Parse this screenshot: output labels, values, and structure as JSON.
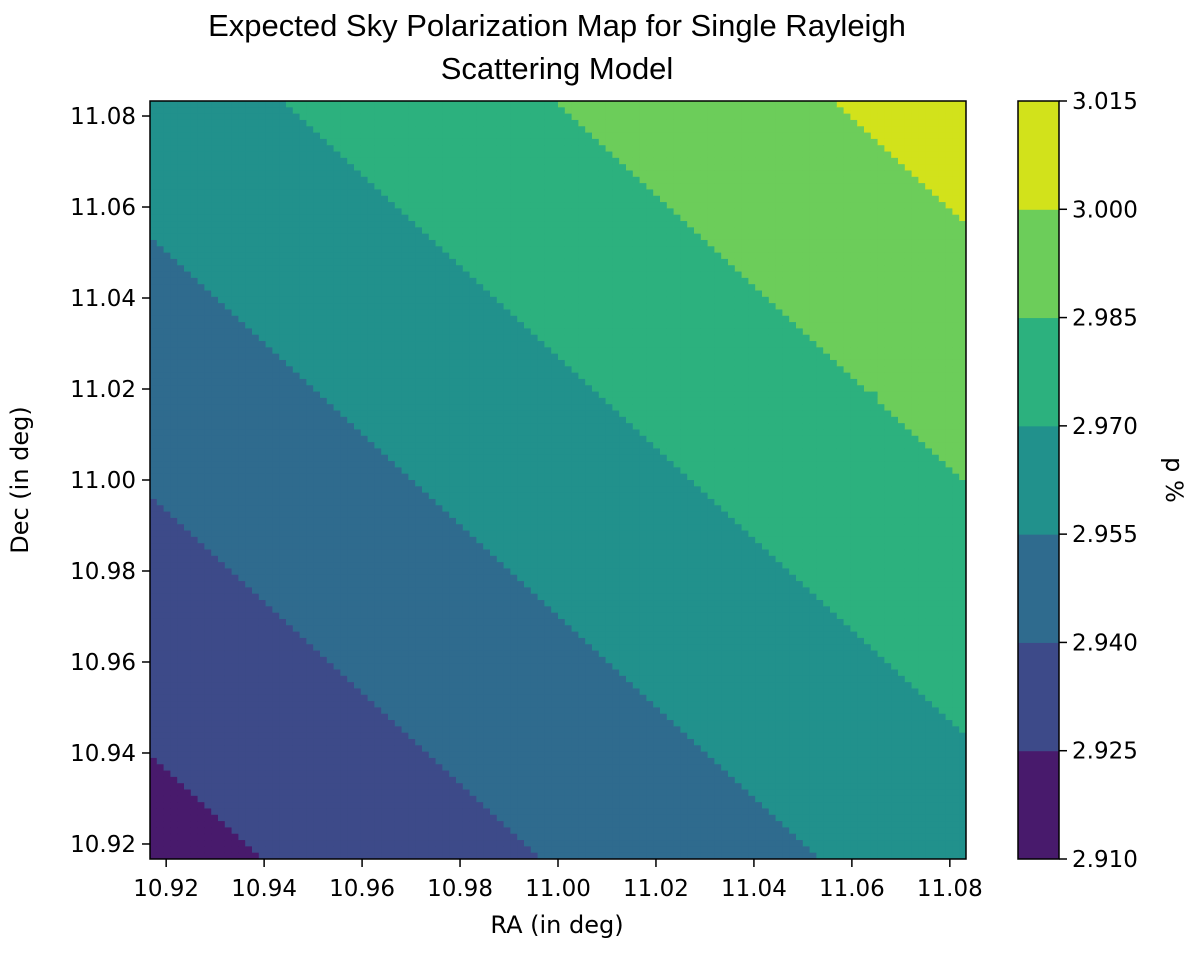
{
  "chart_data": {
    "type": "contourf",
    "title": [
      "Expected Sky Polarization Map for Single Rayleigh",
      "Scattering Model"
    ],
    "xlabel": "RA (in deg)",
    "ylabel": "Dec (in deg)",
    "xlim": [
      10.9167,
      11.0833
    ],
    "ylim": [
      10.9167,
      11.0833
    ],
    "x_ticks": [
      "10.92",
      "10.94",
      "10.96",
      "10.98",
      "11.00",
      "11.02",
      "11.04",
      "11.06",
      "11.08"
    ],
    "y_ticks": [
      "10.92",
      "10.94",
      "10.96",
      "10.98",
      "11.00",
      "11.02",
      "11.04",
      "11.06",
      "11.08"
    ],
    "colorbar": {
      "label": "p %",
      "levels": [
        "2.910",
        "2.925",
        "2.940",
        "2.955",
        "2.970",
        "2.985",
        "3.000",
        "3.015"
      ],
      "colors": [
        "#481a6c",
        "#3d4a89",
        "#2f6b8e",
        "#21918c",
        "#2cb17e",
        "#6ccd5a",
        "#d2e21b"
      ]
    },
    "field": {
      "description_note": "",
      "corner_values": {
        "ra_min_dec_min": 2.919,
        "ra_max_dec_min": 2.963,
        "ra_min_dec_max": 2.963,
        "ra_max_dec_max": 3.007
      }
    }
  }
}
